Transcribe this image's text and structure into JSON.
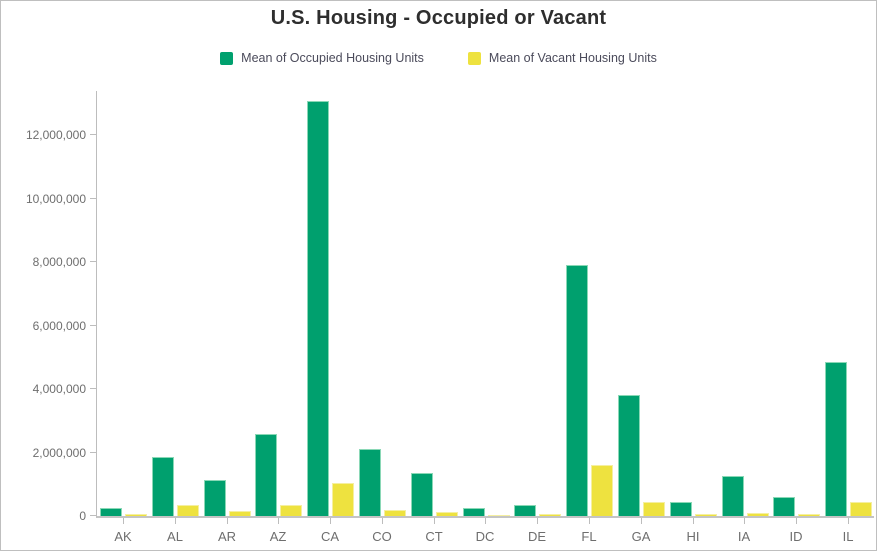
{
  "chart_data": {
    "type": "bar",
    "title": "U.S. Housing - Occupied or Vacant",
    "categories": [
      "AK",
      "AL",
      "AR",
      "AZ",
      "CA",
      "CO",
      "CT",
      "DC",
      "DE",
      "FL",
      "GA",
      "HI",
      "IA",
      "ID",
      "IL"
    ],
    "series": [
      {
        "name": "Mean of Occupied Housing Units",
        "color": "#00a06e",
        "values": [
          250000,
          1850000,
          1150000,
          2600000,
          13100000,
          2100000,
          1350000,
          250000,
          350000,
          7900000,
          3800000,
          430000,
          1250000,
          600000,
          4850000
        ]
      },
      {
        "name": "Mean of Vacant Housing Units",
        "color": "#eee23f",
        "values": [
          50000,
          350000,
          150000,
          350000,
          1050000,
          180000,
          120000,
          30000,
          50000,
          1600000,
          450000,
          60000,
          100000,
          60000,
          450000
        ]
      }
    ],
    "xlabel": "",
    "ylabel": "",
    "ylim": [
      0,
      13400000
    ],
    "yticks": [
      0,
      2000000,
      4000000,
      6000000,
      8000000,
      10000000,
      12000000
    ],
    "ytick_labels": [
      "0",
      "2,000,000",
      "4,000,000",
      "6,000,000",
      "8,000,000",
      "10,000,000",
      "12,000,000"
    ],
    "grid": false,
    "legend_position": "top"
  },
  "colors": {
    "occupied": "#00a06e",
    "occupied_edge": "#8ad8b6",
    "vacant": "#eee23f",
    "vacant_edge": "#f5efa0",
    "axis": "#bdbdbd",
    "tick_text": "#6e6e6e",
    "title_text": "#2e2e2e",
    "legend_text": "#4b4b5b",
    "frame_border": "#bfbfbf"
  }
}
